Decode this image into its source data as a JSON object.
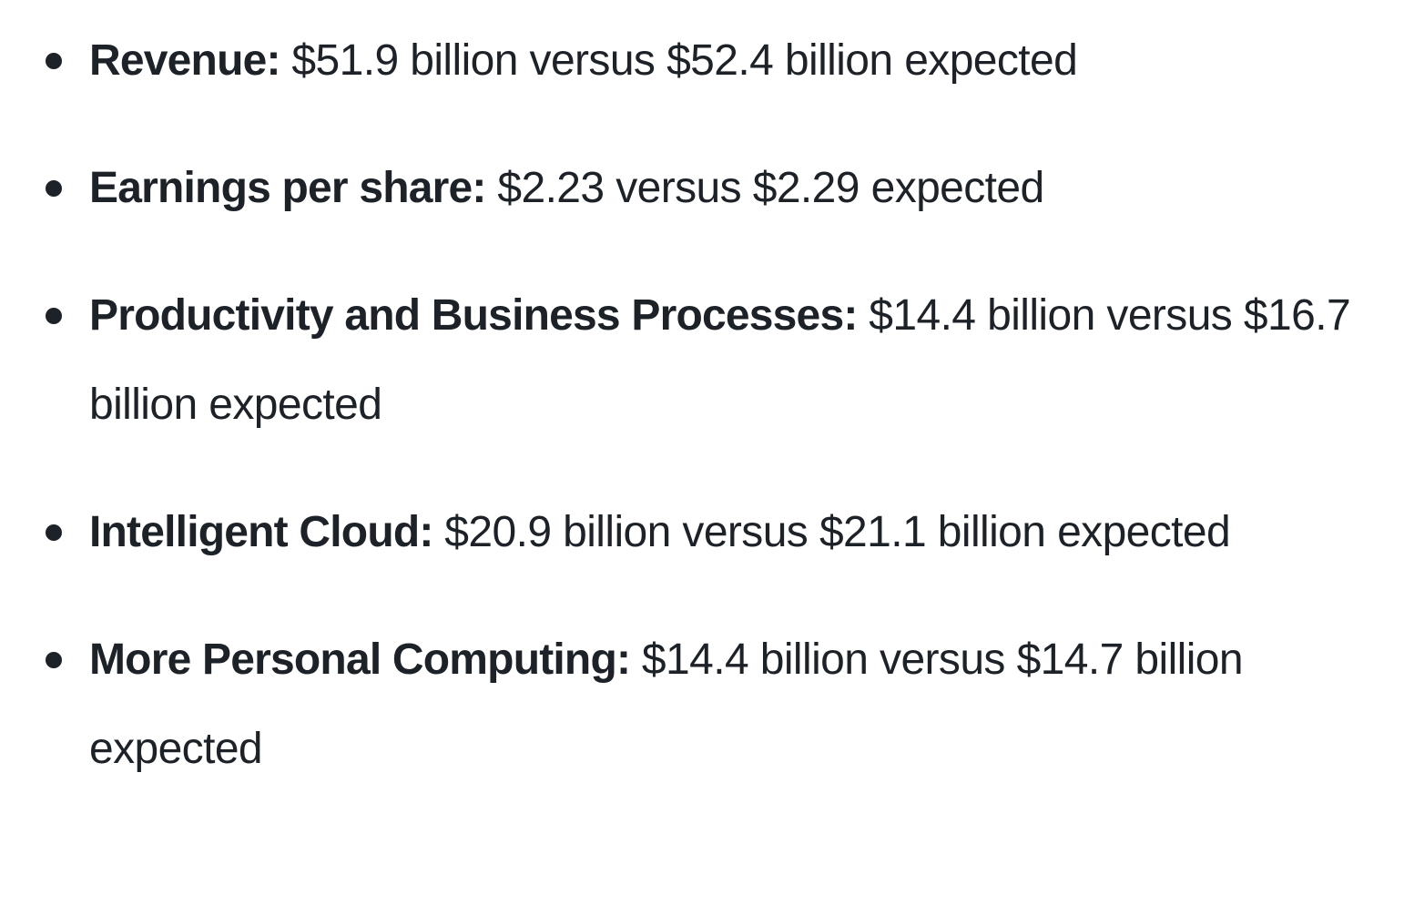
{
  "results": {
    "items": [
      {
        "label": "Revenue:",
        "text": "$51.9 billion versus $52.4 billion expected"
      },
      {
        "label": "Earnings per share:",
        "text": "$2.23 versus $2.29 expected"
      },
      {
        "label": "Productivity and Business Processes:",
        "text": "$14.4 billion versus $16.7 billion expected"
      },
      {
        "label": "Intelligent Cloud:",
        "text": "$20.9 billion versus $21.1 billion expected"
      },
      {
        "label": "More Personal Computing:",
        "text": "$14.4 billion versus $14.7 billion expected"
      }
    ]
  },
  "colors": {
    "text": "#1d2228",
    "background": "#ffffff"
  }
}
